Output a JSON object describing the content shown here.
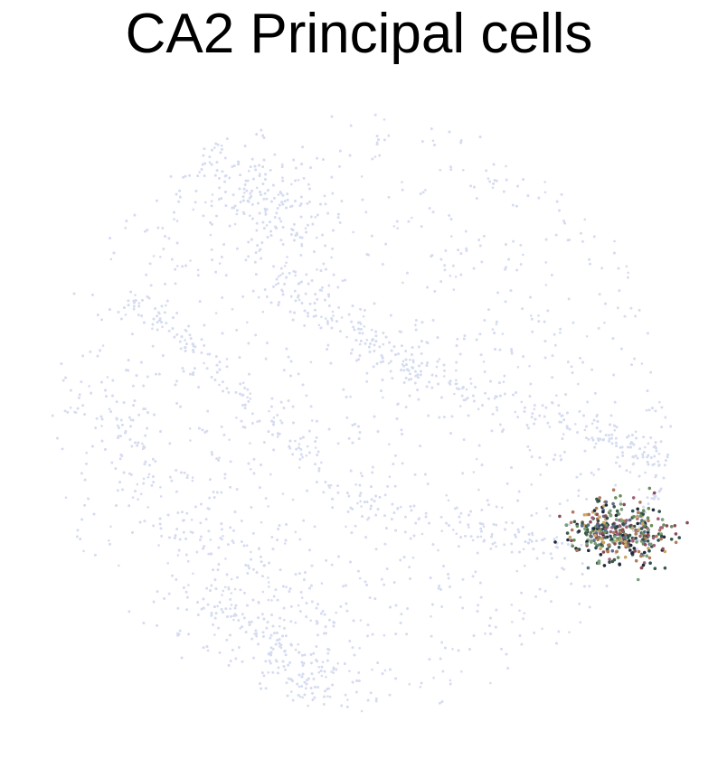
{
  "chart_data": {
    "type": "scatter",
    "title": "CA2 Principal cells",
    "xlabel": "",
    "ylabel": "",
    "axes_visible": false,
    "grid": false,
    "legend": "none",
    "background_color": "#d6dcf0",
    "highlight_colors": [
      "#1f2a3a",
      "#2f4f4f",
      "#6b8e5a",
      "#8b4a5a",
      "#b07a5a",
      "#5a6e8a",
      "#c9a86a",
      "#3a5a4a",
      "#a0607a",
      "#7aa07a"
    ],
    "series": [
      {
        "name": "",
        "role": "background",
        "color": "#d6dcf0",
        "point_count": 16000
      },
      {
        "name": "",
        "role": "highlight",
        "point_count": 380
      }
    ]
  }
}
